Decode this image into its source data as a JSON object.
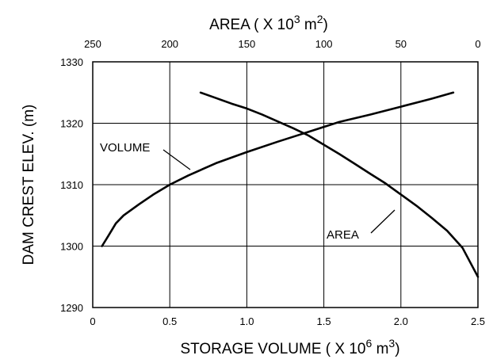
{
  "chart_data": {
    "type": "line",
    "grid": true,
    "x_bottom": {
      "label_main": "STORAGE VOLUME ( X 10",
      "label_exp1": "6",
      "label_mid": " m",
      "label_exp2": "3",
      "label_end": ")",
      "range": [
        0,
        2.5
      ],
      "ticks": [
        0,
        0.5,
        1.0,
        1.5,
        2.0,
        2.5
      ],
      "tick_labels": [
        "0",
        "0.5",
        "1.0",
        "1.5",
        "2.0",
        "2.5"
      ]
    },
    "x_top": {
      "label_main": "AREA ( X 10",
      "label_exp1": "3",
      "label_mid": " m",
      "label_exp2": "2",
      "label_end": ")",
      "range": [
        250,
        0
      ],
      "reversed": true,
      "ticks": [
        250,
        200,
        150,
        100,
        50,
        0
      ],
      "tick_labels": [
        "250",
        "200",
        "150",
        "100",
        "50",
        "0"
      ]
    },
    "y": {
      "label": "DAM CREST ELEV. (m)",
      "range": [
        1290,
        1330
      ],
      "ticks": [
        1290,
        1300,
        1310,
        1320,
        1330
      ],
      "tick_labels": [
        "1290",
        "1300",
        "1310",
        "1320",
        "1330"
      ]
    },
    "series": [
      {
        "name": "VOLUME",
        "axis": "bottom",
        "x": [
          0.06,
          0.1,
          0.15,
          0.2,
          0.3,
          0.4,
          0.5,
          0.62,
          0.8,
          1.0,
          1.2,
          1.4,
          1.6,
          1.8,
          2.0,
          2.2,
          2.34
        ],
        "y": [
          1300,
          1301.6,
          1303.7,
          1305,
          1306.8,
          1308.5,
          1310,
          1311.5,
          1313.5,
          1315.3,
          1317,
          1318.6,
          1320.2,
          1321.4,
          1322.7,
          1324,
          1325
        ]
      },
      {
        "name": "AREA",
        "axis": "top",
        "x": [
          180,
          170,
          160,
          150,
          140,
          130,
          120,
          110,
          100,
          90,
          80,
          70,
          60,
          50,
          40,
          30,
          20,
          10,
          0
        ],
        "y": [
          1325,
          1324.1,
          1323.2,
          1322.4,
          1321.4,
          1320.3,
          1319.2,
          1318,
          1316.5,
          1315,
          1313.4,
          1311.8,
          1310.2,
          1308.4,
          1306.6,
          1304.6,
          1302.5,
          1299.7,
          1295
        ]
      }
    ],
    "annotations": [
      {
        "text": "VOLUME",
        "series": "VOLUME"
      },
      {
        "text": "AREA",
        "series": "AREA"
      }
    ]
  }
}
